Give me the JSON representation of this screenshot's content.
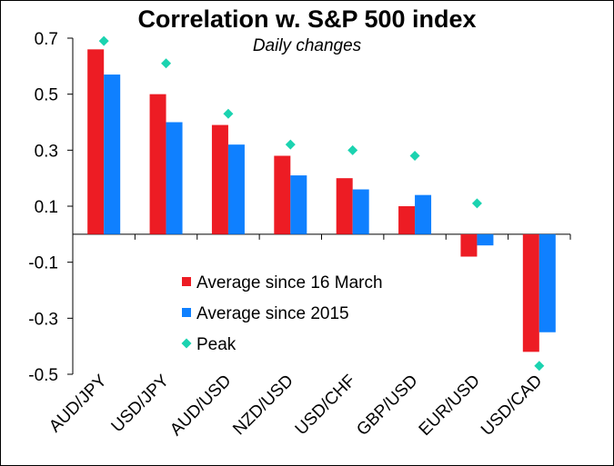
{
  "chart_data": {
    "type": "bar",
    "title": "Correlation w. S&P 500 index",
    "subtitle": "Daily changes",
    "categories": [
      "AUD/JPY",
      "USD/JPY",
      "AUD/USD",
      "NZD/USD",
      "USD/CHF",
      "GBP/USD",
      "EUR/USD",
      "USD/CAD"
    ],
    "series": [
      {
        "name": "Average since 16 March",
        "kind": "bar",
        "color": "#ed1c24",
        "values": [
          0.66,
          0.5,
          0.39,
          0.28,
          0.2,
          0.1,
          -0.08,
          -0.42
        ]
      },
      {
        "name": "Average since 2015",
        "kind": "bar",
        "color": "#0f80ff",
        "values": [
          0.57,
          0.4,
          0.32,
          0.21,
          0.16,
          0.14,
          -0.04,
          -0.35
        ]
      },
      {
        "name": "Peak",
        "kind": "marker",
        "color": "#1bd3b0",
        "values": [
          0.69,
          0.61,
          0.43,
          0.32,
          0.3,
          0.28,
          0.11,
          -0.47
        ]
      }
    ],
    "ylim": [
      -0.5,
      0.7
    ],
    "yticks": [
      -0.5,
      -0.3,
      -0.1,
      0.1,
      0.3,
      0.5,
      0.7
    ],
    "yticklabels": [
      "-0.5",
      "-0.3",
      "-0.1",
      "0.1",
      "0.3",
      "0.5",
      "0.7"
    ],
    "grid": false,
    "legend_position": "center"
  }
}
